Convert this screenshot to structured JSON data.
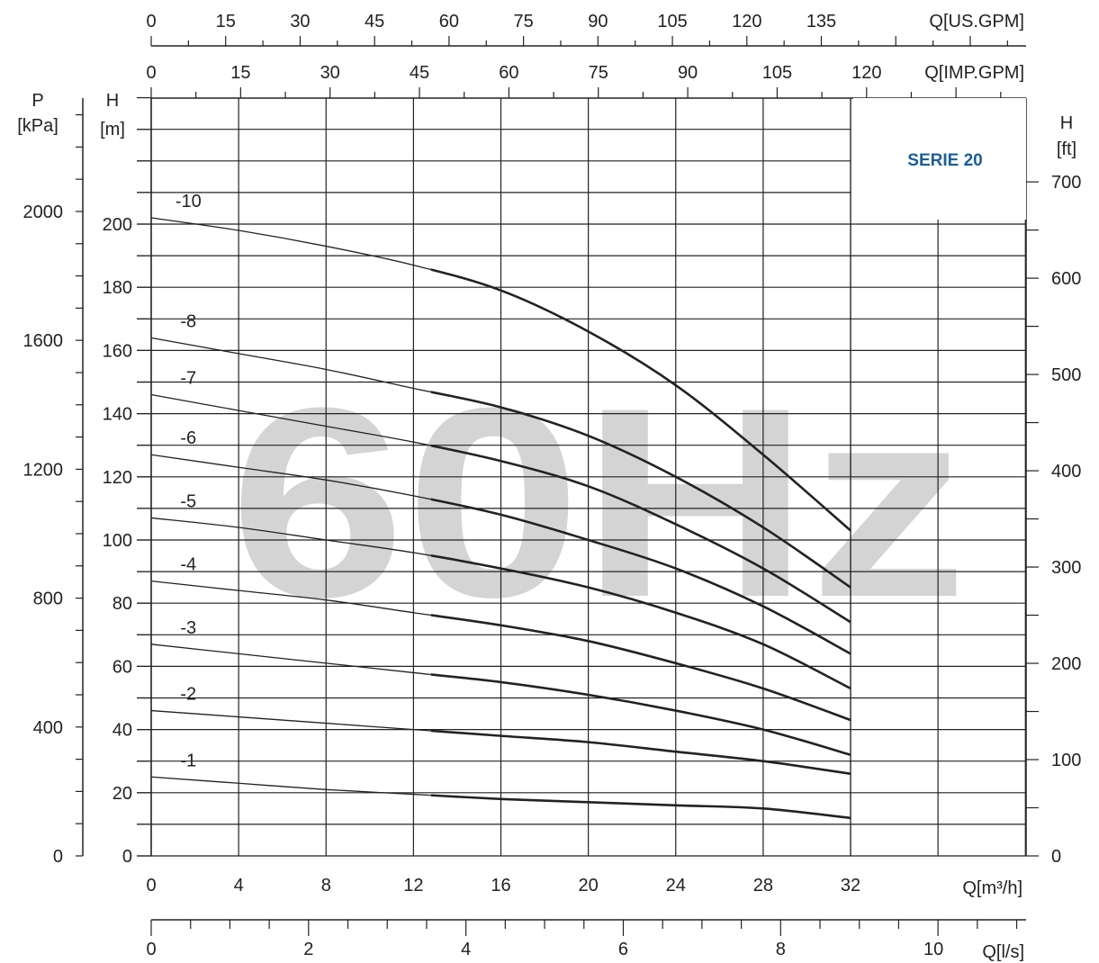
{
  "chart_data": {
    "type": "line",
    "title": "SERIE 20",
    "watermark": "60Hz",
    "x_unit": "Q[m³/h]",
    "xlim": [
      0,
      32
    ],
    "ylim": [
      0,
      200
    ],
    "x_ticks": [
      0,
      4,
      8,
      12,
      16,
      20,
      24,
      28,
      32
    ],
    "y_ticks_m": [
      0,
      20,
      40,
      60,
      80,
      100,
      120,
      140,
      160,
      180,
      200
    ],
    "y_left_label": "H",
    "y_left_unit": "[m]",
    "p_label": "P",
    "p_unit": "[kPa]",
    "p_ticks": [
      0,
      400,
      800,
      1200,
      1600,
      2000
    ],
    "ft_label": "H",
    "ft_unit": "[ft]",
    "ft_ticks": [
      0,
      100,
      200,
      300,
      400,
      500,
      600,
      700
    ],
    "us_gpm_label": "Q[US.GPM]",
    "us_gpm_ticks": [
      0,
      15,
      30,
      45,
      60,
      75,
      90,
      105,
      120,
      135
    ],
    "imp_gpm_label": "Q[IMP.GPM]",
    "imp_gpm_ticks": [
      0,
      15,
      30,
      45,
      60,
      75,
      90,
      105,
      120
    ],
    "ls_label": "Q[l/s]",
    "ls_ticks": [
      0,
      2,
      4,
      6,
      8,
      10
    ],
    "grid": true,
    "x": [
      0,
      4,
      8,
      12,
      16,
      20,
      24,
      28,
      32
    ],
    "bold_from_x": 12.8,
    "series": [
      {
        "name": "-10",
        "values": [
          202,
          198,
          193,
          187,
          179,
          166,
          149,
          127,
          103
        ]
      },
      {
        "name": "-8",
        "values": [
          164,
          159,
          154,
          148,
          142,
          133,
          120,
          104,
          85
        ]
      },
      {
        "name": "-7",
        "values": [
          146,
          141,
          136,
          131,
          125,
          117,
          105,
          91,
          74
        ]
      },
      {
        "name": "-6",
        "values": [
          127,
          123,
          119,
          114,
          108,
          100,
          91,
          79,
          64
        ]
      },
      {
        "name": "-5",
        "values": [
          107,
          104,
          100,
          96,
          91,
          85,
          77,
          67,
          53
        ]
      },
      {
        "name": "-4",
        "values": [
          87,
          84,
          81,
          77,
          73,
          68,
          61,
          53,
          43
        ]
      },
      {
        "name": "-3",
        "values": [
          67,
          64,
          61,
          58,
          55,
          51,
          46,
          40,
          32
        ]
      },
      {
        "name": "-2",
        "values": [
          46,
          44,
          42,
          40,
          38,
          36,
          33,
          30,
          26
        ]
      },
      {
        "name": "-1",
        "values": [
          25,
          23,
          21,
          19.5,
          18,
          17,
          16,
          15,
          12
        ]
      }
    ]
  }
}
